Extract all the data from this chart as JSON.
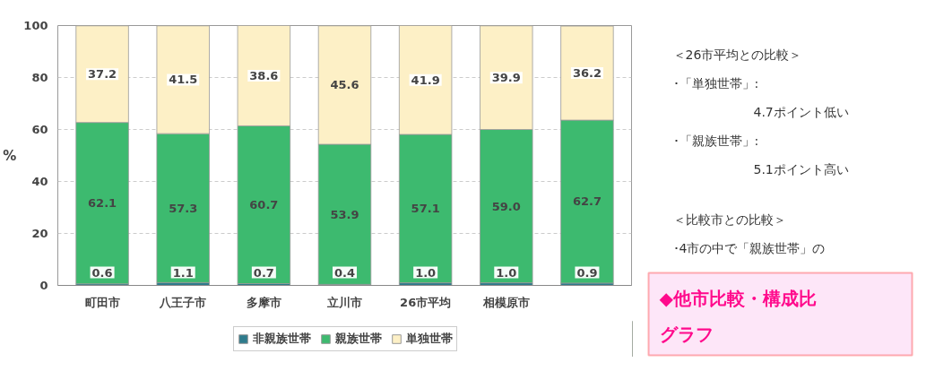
{
  "chart_data": {
    "type": "bar",
    "stacked": true,
    "ylabel": "%",
    "categories": [
      "町田市",
      "八王子市",
      "多摩市",
      "立川市",
      "26市平均",
      "相模原市",
      null
    ],
    "series": [
      {
        "name": "非親族世帯",
        "color": "#2e7b8c",
        "values": [
          0.6,
          1.1,
          0.7,
          0.4,
          1.0,
          1.0,
          0.9
        ],
        "value_labels": [
          "0.6",
          "1.1",
          "0.7",
          "0.4",
          "1.0",
          "1.0",
          "0.9"
        ]
      },
      {
        "name": "親族世帯",
        "color": "#3dba6f",
        "values": [
          62.1,
          57.3,
          60.7,
          53.9,
          57.1,
          59.0,
          62.7
        ],
        "value_labels": [
          "62.1",
          "57.3",
          "60.7",
          "53.9",
          "57.1",
          "59.0",
          "62.7"
        ]
      },
      {
        "name": "単独世帯",
        "color": "#fdf0c6",
        "values": [
          37.2,
          41.5,
          38.6,
          45.6,
          41.9,
          39.9,
          36.2
        ],
        "value_labels": [
          "37.2",
          "41.5",
          "38.6",
          "45.6",
          "41.9",
          "39.9",
          "36.2"
        ]
      }
    ],
    "ylim": [
      0,
      100
    ],
    "yticks": [
      0,
      20,
      40,
      60,
      80,
      100
    ],
    "grid": "y",
    "legend": "bottom",
    "annotations": [
      "＜26市平均との比較＞",
      "･「単独世帯」:",
      "4.7ポイント低い",
      "･「親族世帯」:",
      "5.1ポイント高い",
      "＜比較市との比較＞",
      "･4市の中で「親族世帯」の",
      "◆他市比較・構成比",
      "グラフ"
    ]
  }
}
